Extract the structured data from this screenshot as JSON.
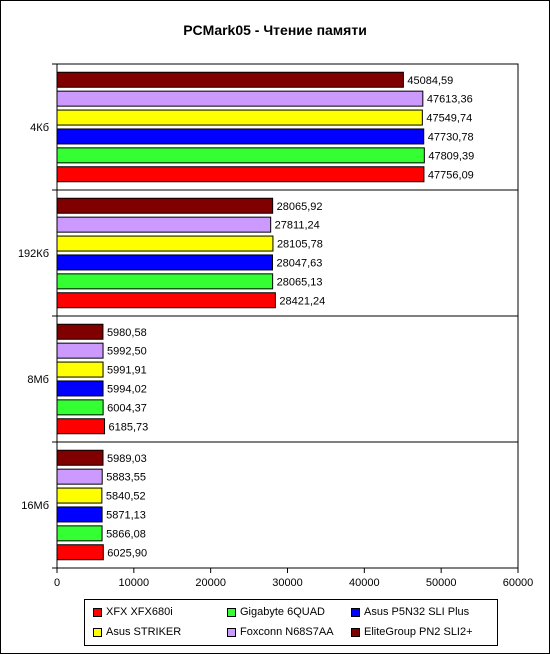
{
  "colors": {
    "series": [
      "#ff0000",
      "#33ff33",
      "#0000ff",
      "#ffff00",
      "#cc99ff",
      "#800000"
    ]
  },
  "chart_data": {
    "type": "bar",
    "orientation": "horizontal",
    "title": "PCMark05 - Чтение памяти",
    "xlabel": "",
    "ylabel": "",
    "xlim": [
      0,
      60000
    ],
    "x_ticks": [
      "0",
      "10000",
      "20000",
      "30000",
      "40000",
      "50000",
      "60000"
    ],
    "grid": false,
    "legend_position": "bottom",
    "categories": [
      "4Кб",
      "192Кб",
      "8Мб",
      "16Мб"
    ],
    "series": [
      {
        "name": "XFX XFX680i",
        "values": [
          47756.09,
          28421.24,
          6185.73,
          6025.9
        ],
        "labels": [
          "47756,09",
          "28421,24",
          "6185,73",
          "6025,90"
        ]
      },
      {
        "name": "Gigabyte 6QUAD",
        "values": [
          47809.39,
          28065.13,
          6004.37,
          5866.08
        ],
        "labels": [
          "47809,39",
          "28065,13",
          "6004,37",
          "5866,08"
        ]
      },
      {
        "name": "Asus P5N32 SLI Plus",
        "values": [
          47730.78,
          28047.63,
          5994.02,
          5871.13
        ],
        "labels": [
          "47730,78",
          "28047,63",
          "5994,02",
          "5871,13"
        ]
      },
      {
        "name": "Asus STRIKER",
        "values": [
          47549.74,
          28105.78,
          5991.91,
          5840.52
        ],
        "labels": [
          "47549,74",
          "28105,78",
          "5991,91",
          "5840,52"
        ]
      },
      {
        "name": "Foxconn N68S7AA",
        "values": [
          47613.36,
          27811.24,
          5992.5,
          5883.55
        ],
        "labels": [
          "47613,36",
          "27811,24",
          "5992,50",
          "5883,55"
        ]
      },
      {
        "name": "EliteGroup PN2 SLI2+",
        "values": [
          45084.59,
          28065.92,
          5980.58,
          5989.03
        ],
        "labels": [
          "45084,59",
          "28065,92",
          "5980,58",
          "5989,03"
        ]
      }
    ]
  }
}
